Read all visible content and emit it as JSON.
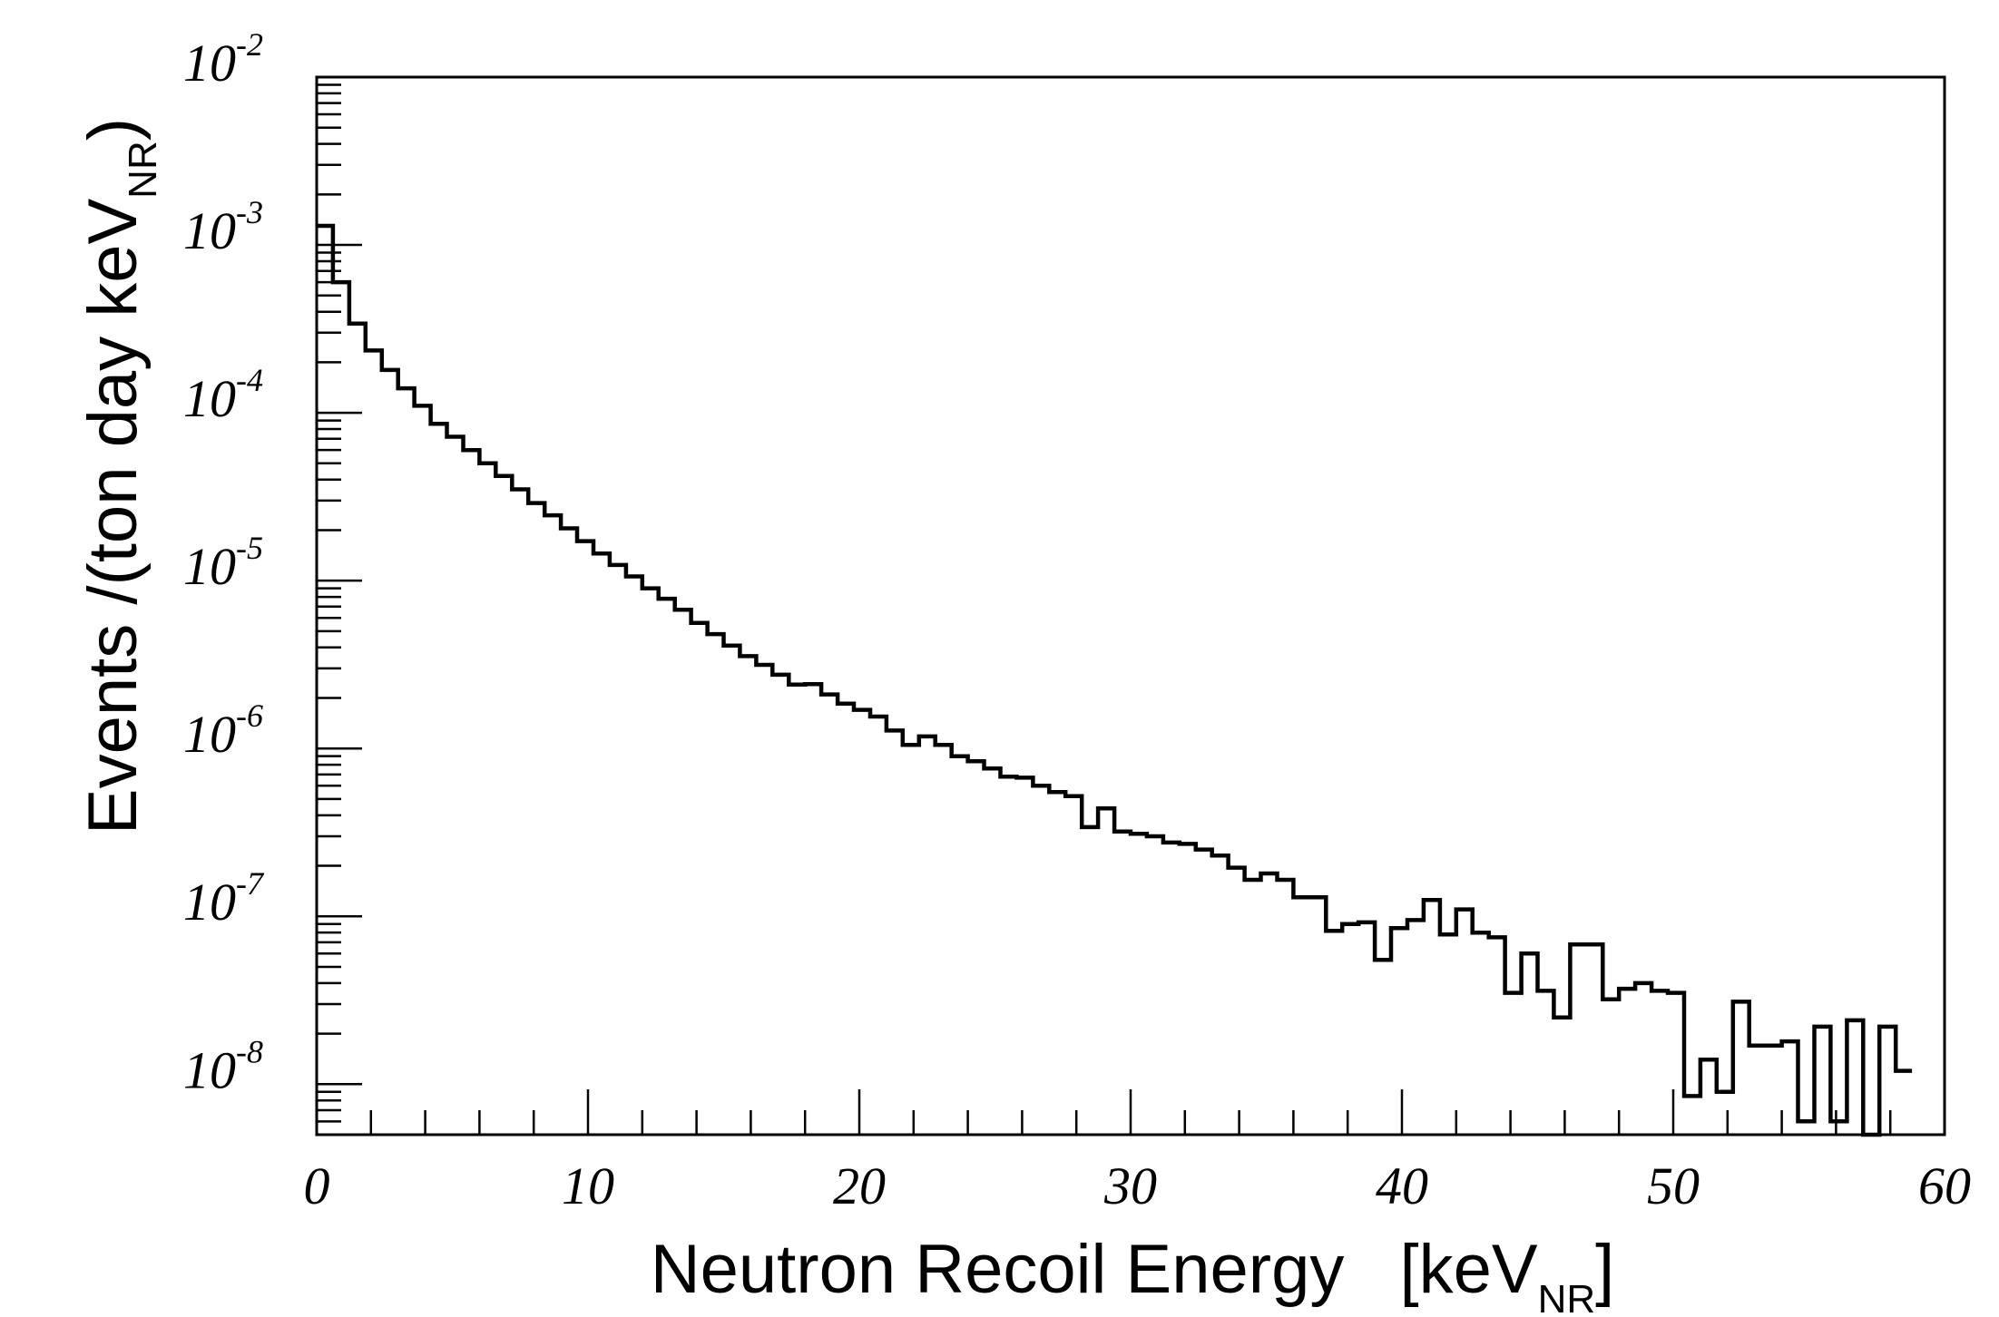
{
  "chart_data": {
    "type": "histogram",
    "title": "",
    "xlabel": "Neutron Recoil Energy",
    "xlabel_unit_open": "[keV",
    "xlabel_unit_sub": "NR",
    "xlabel_unit_close": "]",
    "ylabel": "Events /(ton day keV",
    "ylabel_sub": "NR",
    "ylabel_close": ")",
    "xlim": [
      0,
      60
    ],
    "ylim": [
      5e-09,
      0.01
    ],
    "yscale": "log",
    "bin_width": 0.6,
    "x_ticks": [
      "0",
      "10",
      "20",
      "30",
      "40",
      "50",
      "60"
    ],
    "y_ticks": [
      {
        "base": "10",
        "exp": "-8",
        "value": 1e-08
      },
      {
        "base": "10",
        "exp": "-7",
        "value": 1e-07
      },
      {
        "base": "10",
        "exp": "-6",
        "value": 1e-06
      },
      {
        "base": "10",
        "exp": "-5",
        "value": 1e-05
      },
      {
        "base": "10",
        "exp": "-4",
        "value": 0.0001
      },
      {
        "base": "10",
        "exp": "-3",
        "value": 0.001
      },
      {
        "base": "10",
        "exp": "-2",
        "value": 0.01
      }
    ],
    "values": [
      0.0013,
      0.0006,
      0.00034,
      0.000235,
      0.00018,
      0.00014,
      0.00011,
      8.6e-05,
      7.2e-05,
      6e-05,
      5e-05,
      4.2e-05,
      3.5e-05,
      2.9e-05,
      2.45e-05,
      2.05e-05,
      1.72e-05,
      1.45e-05,
      1.24e-05,
      1.06e-05,
      9e-06,
      7.8e-06,
      6.7e-06,
      5.6e-06,
      4.8e-06,
      4.1e-06,
      3.55e-06,
      3.15e-06,
      2.75e-06,
      2.4e-06,
      2.42e-06,
      2.1e-06,
      1.85e-06,
      1.7e-06,
      1.55e-06,
      1.28e-06,
      1.05e-06,
      1.18e-06,
      1.05e-06,
      9e-07,
      8.4e-07,
      7.6e-07,
      6.8e-07,
      6.7e-07,
      6e-07,
      5.5e-07,
      5.2e-07,
      3.4e-07,
      4.4e-07,
      3.2e-07,
      3.1e-07,
      3e-07,
      2.75e-07,
      2.7e-07,
      2.5e-07,
      2.3e-07,
      1.95e-07,
      1.65e-07,
      1.8e-07,
      1.65e-07,
      1.3e-07,
      1.3e-07,
      8.2e-08,
      9e-08,
      9.2e-08,
      5.5e-08,
      8.5e-08,
      9.5e-08,
      1.25e-07,
      7.8e-08,
      1.1e-07,
      8e-08,
      7.5e-08,
      3.5e-08,
      6e-08,
      3.6e-08,
      2.5e-08,
      6.8e-08,
      6.8e-08,
      3.2e-08,
      3.7e-08,
      4e-08,
      3.6e-08,
      3.5e-08,
      8.5e-09,
      1.4e-08,
      9e-09,
      3.1e-08,
      1.7e-08,
      1.7e-08,
      1.8e-08,
      6e-09,
      2.2e-08,
      6e-09,
      2.4e-08,
      5e-09,
      2.2e-08,
      1.2e-08
    ]
  }
}
